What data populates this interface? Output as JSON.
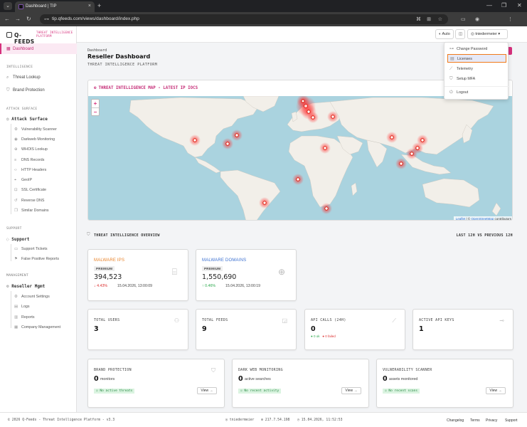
{
  "browser": {
    "tab_title": "Dashboard | TIP",
    "url": "tip.qfeeds.com/views/dashboard/index.php"
  },
  "logo": {
    "name": "Q-FEEDS",
    "subtitle": "THREAT INTELLIGENCE PLATFORM"
  },
  "sidebar": {
    "dashboard": "Dashboard",
    "intelligence_section": "INTELLIGENCE",
    "threat_lookup": "Threat Lookup",
    "brand_protection": "Brand Protection",
    "attack_section": "ATTACK SURFACE",
    "attack_group": "Attack Surface",
    "attack_items": [
      "Vulnerability Scanner",
      "Darkweb Monitoring",
      "WHOIS Lookup",
      "DNS Records",
      "HTTP Headers",
      "GeoIP",
      "SSL Certificate",
      "Reverse DNS",
      "Similar Domains"
    ],
    "support_section": "SUPPORT",
    "support_group": "Support",
    "support_items": [
      "Support Tickets",
      "False Positive Reports"
    ],
    "mgmt_section": "MANAGEMENT",
    "mgmt_group": "Reseller Mgmt",
    "mgmt_items": [
      "Account Settings",
      "Logs",
      "Reports",
      "Company Management"
    ]
  },
  "topbar": {
    "theme": "Auto",
    "user": "tniedermeier"
  },
  "dropdown": {
    "items": [
      "Change Password",
      "Licenses",
      "Telemetry",
      "Setup MFA",
      "Logout"
    ],
    "highlighted": "Licenses"
  },
  "header": {
    "crumb": "Dashboard",
    "title": "Reseller Dashboard",
    "subtitle": "THREAT INTELLIGENCE PLATFORM"
  },
  "map": {
    "title": "THREAT INTELLIGENCE MAP - LATEST IP IOCS",
    "zoom_in": "+",
    "zoom_out": "−",
    "attribution_leaflet": "Leaflet",
    "attribution_sep": " | © ",
    "attribution_osm": "OpenStreetMap",
    "attribution_tail": " contributors"
  },
  "overview": {
    "title": "THREAT INTELLIGENCE OVERVIEW",
    "range": "LAST 12H VS PREVIOUS 12H"
  },
  "malware_ips": {
    "label": "MALWARE IPS",
    "badge": "PREMIUM",
    "value": "394,523",
    "delta": "↓ 4.43%",
    "timestamp": "15.04.2026, 13:00:09",
    "color": "#e8832a"
  },
  "malware_domains": {
    "label": "MALWARE DOMAINS",
    "badge": "PREMIUM",
    "value": "1,550,690",
    "delta": "↑ 0.46%",
    "timestamp": "15.04.2026, 13:00:19",
    "color": "#3a6fd0"
  },
  "stats": {
    "total_users_label": "TOTAL USERS",
    "total_users": "3",
    "total_feeds_label": "TOTAL FEEDS",
    "total_feeds": "9",
    "api_calls_label": "API CALLS (24H)",
    "api_calls": "0",
    "api_ok": "● 0 ok",
    "api_failed": "● 0 failed",
    "api_keys_label": "ACTIVE API KEYS",
    "api_keys": "1"
  },
  "monitors": {
    "brand_label": "BRAND PROTECTION",
    "brand_val": "0",
    "brand_unit": "monitors",
    "brand_badge": "☑ No active threats",
    "dark_label": "DARK WEB MONITORING",
    "dark_val": "0",
    "dark_unit": "active searches",
    "dark_badge": "☑ No recent activity",
    "vuln_label": "VULNERABILITY SCANNER",
    "vuln_val": "0",
    "vuln_unit": "assets monitored",
    "vuln_badge": "☑ No recent scans",
    "view": "View →"
  },
  "footer": {
    "copyright": "© 2026 Q-Feeds - Threat Intelligence Platform - v3.3",
    "user": "tniedermeier",
    "ip": "217.7.54.198",
    "time": "15.04.2026, 11:52:53",
    "links": [
      "Changelog",
      "Terms",
      "Privacy",
      "Support"
    ]
  }
}
